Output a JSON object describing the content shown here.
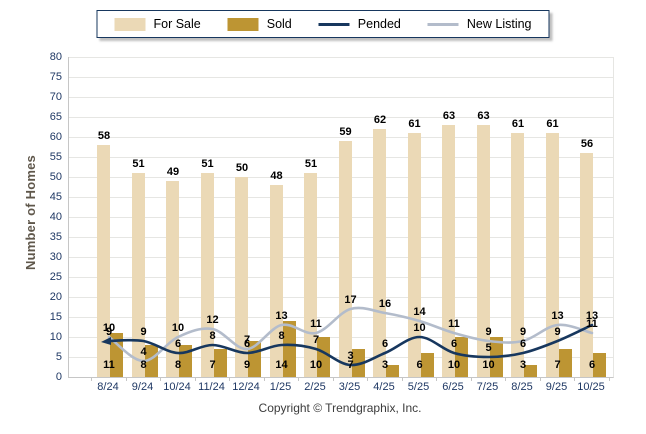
{
  "legend": {
    "border_color": "#17375E",
    "items": [
      "For Sale",
      "Sold",
      "Pended",
      "New Listing"
    ]
  },
  "y_axis_title": "Number of Homes",
  "copyright": "Copyright © Trendgraphix, Inc.",
  "colors": {
    "for_sale": "#EBD9B6",
    "sold": "#BD9533",
    "pended": "#17375E",
    "new_listing": "#B3BCCB",
    "grid": "#E6E6E3",
    "axis": "#C6C6C6",
    "tick_text": "#1F3864",
    "y_title_text": "#5F574B"
  },
  "chart_data": {
    "type": "bar",
    "subtype": "grouped bars with smooth overlay lines",
    "title": "",
    "xlabel": "",
    "ylabel": "Number of Homes",
    "ylim": [
      0,
      80
    ],
    "ytick_step": 5,
    "y_ticks": [
      0,
      5,
      10,
      15,
      20,
      25,
      30,
      35,
      40,
      45,
      50,
      55,
      60,
      65,
      70,
      75,
      80
    ],
    "grid": true,
    "legend_position": "top",
    "categories": [
      "8/24",
      "9/24",
      "10/24",
      "11/24",
      "12/24",
      "1/25",
      "2/25",
      "3/25",
      "4/25",
      "5/25",
      "6/25",
      "7/25",
      "8/25",
      "9/25",
      "10/25"
    ],
    "series": [
      {
        "name": "For Sale",
        "type": "bar",
        "color": "#EBD9B6",
        "values": [
          58,
          51,
          49,
          51,
          50,
          48,
          51,
          59,
          62,
          61,
          63,
          63,
          61,
          61,
          56
        ]
      },
      {
        "name": "Sold",
        "type": "bar",
        "color": "#BD9533",
        "values": [
          11,
          8,
          8,
          7,
          9,
          14,
          10,
          7,
          3,
          6,
          10,
          10,
          3,
          7,
          6
        ]
      },
      {
        "name": "Pended",
        "type": "line",
        "color": "#17375E",
        "values": [
          9,
          9,
          6,
          8,
          6,
          8,
          7,
          3,
          6,
          10,
          6,
          5,
          6,
          9,
          13
        ]
      },
      {
        "name": "New Listing",
        "type": "line",
        "color": "#B3BCCB",
        "values": [
          10,
          4,
          10,
          12,
          7,
          13,
          11,
          17,
          16,
          14,
          11,
          9,
          9,
          13,
          11
        ]
      }
    ]
  }
}
